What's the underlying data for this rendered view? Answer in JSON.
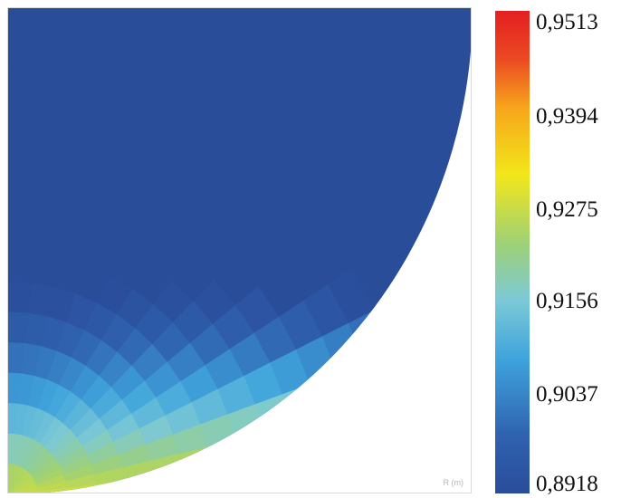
{
  "chart_data": {
    "type": "heatmap",
    "title": "",
    "xlabel": "",
    "ylabel": "",
    "description_of_field": "quarter-disk contour map; value highest at the lower-left rim and decreasing toward the top",
    "colorbar": {
      "min": 0.8918,
      "max": 0.9513,
      "tick_labels": [
        "0,9513",
        "0,9394",
        "0,9275",
        "0,9156",
        "0,9037",
        "0,8918"
      ],
      "tick_values": [
        0.9513,
        0.9394,
        0.9275,
        0.9156,
        0.9037,
        0.8918
      ],
      "colors": [
        "#2a4d9a",
        "#2f62b0",
        "#3fa4dc",
        "#7cc9d6",
        "#9fd174",
        "#f2e71a",
        "#f7a51b",
        "#ea4a22",
        "#e51f22"
      ]
    },
    "unit_label": "R (m)"
  }
}
